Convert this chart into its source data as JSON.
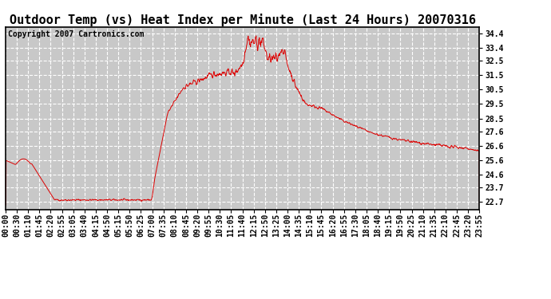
{
  "title": "Outdoor Temp (vs) Heat Index per Minute (Last 24 Hours) 20070316",
  "copyright_text": "Copyright 2007 Cartronics.com",
  "background_color": "#ffffff",
  "plot_bg_color": "#c8c8c8",
  "grid_color": "#ffffff",
  "line_color": "#dd0000",
  "yticks": [
    22.7,
    23.7,
    24.6,
    25.6,
    26.6,
    27.6,
    28.5,
    29.5,
    30.5,
    31.5,
    32.5,
    33.4,
    34.4
  ],
  "ymin": 22.2,
  "ymax": 34.85,
  "xtick_labels": [
    "00:00",
    "00:30",
    "01:10",
    "01:45",
    "02:20",
    "02:55",
    "03:05",
    "03:40",
    "04:15",
    "04:50",
    "05:15",
    "05:50",
    "06:25",
    "07:00",
    "07:35",
    "08:10",
    "08:45",
    "09:20",
    "09:55",
    "10:30",
    "11:05",
    "11:40",
    "12:15",
    "12:50",
    "13:25",
    "14:00",
    "14:35",
    "15:10",
    "15:45",
    "16:20",
    "16:55",
    "17:30",
    "18:05",
    "18:40",
    "19:15",
    "19:50",
    "20:25",
    "21:10",
    "21:35",
    "22:10",
    "22:45",
    "23:20",
    "23:55"
  ],
  "title_fontsize": 11,
  "tick_fontsize": 7,
  "copyright_fontsize": 7
}
